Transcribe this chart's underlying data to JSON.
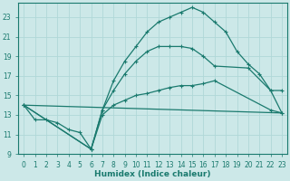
{
  "xlabel": "Humidex (Indice chaleur)",
  "bg_color": "#cce8e8",
  "grid_color": "#b0d8d8",
  "line_color": "#1a7a6e",
  "xlim": [
    -0.5,
    23.5
  ],
  "ylim": [
    9,
    24.5
  ],
  "yticks": [
    9,
    11,
    13,
    15,
    17,
    19,
    21,
    23
  ],
  "xticks": [
    0,
    1,
    2,
    3,
    4,
    5,
    6,
    7,
    8,
    9,
    10,
    11,
    12,
    13,
    14,
    15,
    16,
    17,
    18,
    19,
    20,
    21,
    22,
    23
  ],
  "line1_x": [
    0,
    1,
    2,
    3,
    4,
    5,
    6,
    7,
    8,
    9,
    10,
    11,
    12,
    13,
    14,
    15,
    16,
    17,
    22,
    23
  ],
  "line1_y": [
    14.0,
    12.5,
    12.5,
    12.2,
    11.5,
    11.2,
    9.5,
    13.0,
    14.0,
    14.5,
    15.0,
    15.2,
    15.5,
    15.8,
    16.0,
    16.0,
    16.2,
    16.5,
    13.5,
    13.2
  ],
  "line2_x": [
    0,
    6,
    7,
    8,
    9,
    10,
    11,
    12,
    13,
    14,
    15,
    16,
    17,
    18,
    19,
    20,
    21,
    22,
    23
  ],
  "line2_y": [
    14.0,
    9.5,
    13.5,
    16.5,
    18.5,
    20.0,
    21.5,
    22.5,
    23.0,
    23.5,
    24.0,
    23.5,
    22.5,
    21.5,
    19.5,
    18.2,
    17.2,
    15.5,
    13.2
  ],
  "line3_x": [
    0,
    6,
    7,
    8,
    9,
    10,
    11,
    12,
    13,
    14,
    15,
    16,
    17,
    20,
    22,
    23
  ],
  "line3_y": [
    14.0,
    9.5,
    13.5,
    15.5,
    17.2,
    18.5,
    19.5,
    20.0,
    20.0,
    20.0,
    19.8,
    19.0,
    18.0,
    17.8,
    15.5,
    15.5
  ],
  "line4_x": [
    0,
    23
  ],
  "line4_y": [
    14.0,
    13.2
  ]
}
